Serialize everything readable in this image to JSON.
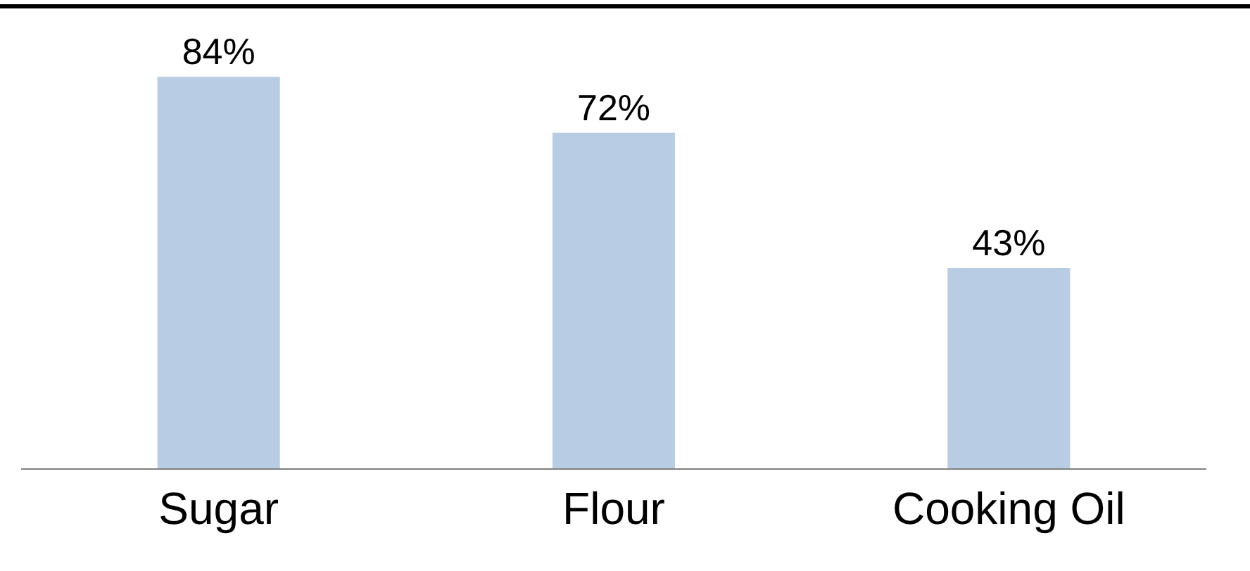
{
  "chart_data": {
    "type": "bar",
    "categories": [
      "Sugar",
      "Flour",
      "Cooking Oil"
    ],
    "values": [
      84,
      72,
      43
    ],
    "value_labels": [
      "84%",
      "72%",
      "43%"
    ],
    "color": "#b8cce4"
  }
}
